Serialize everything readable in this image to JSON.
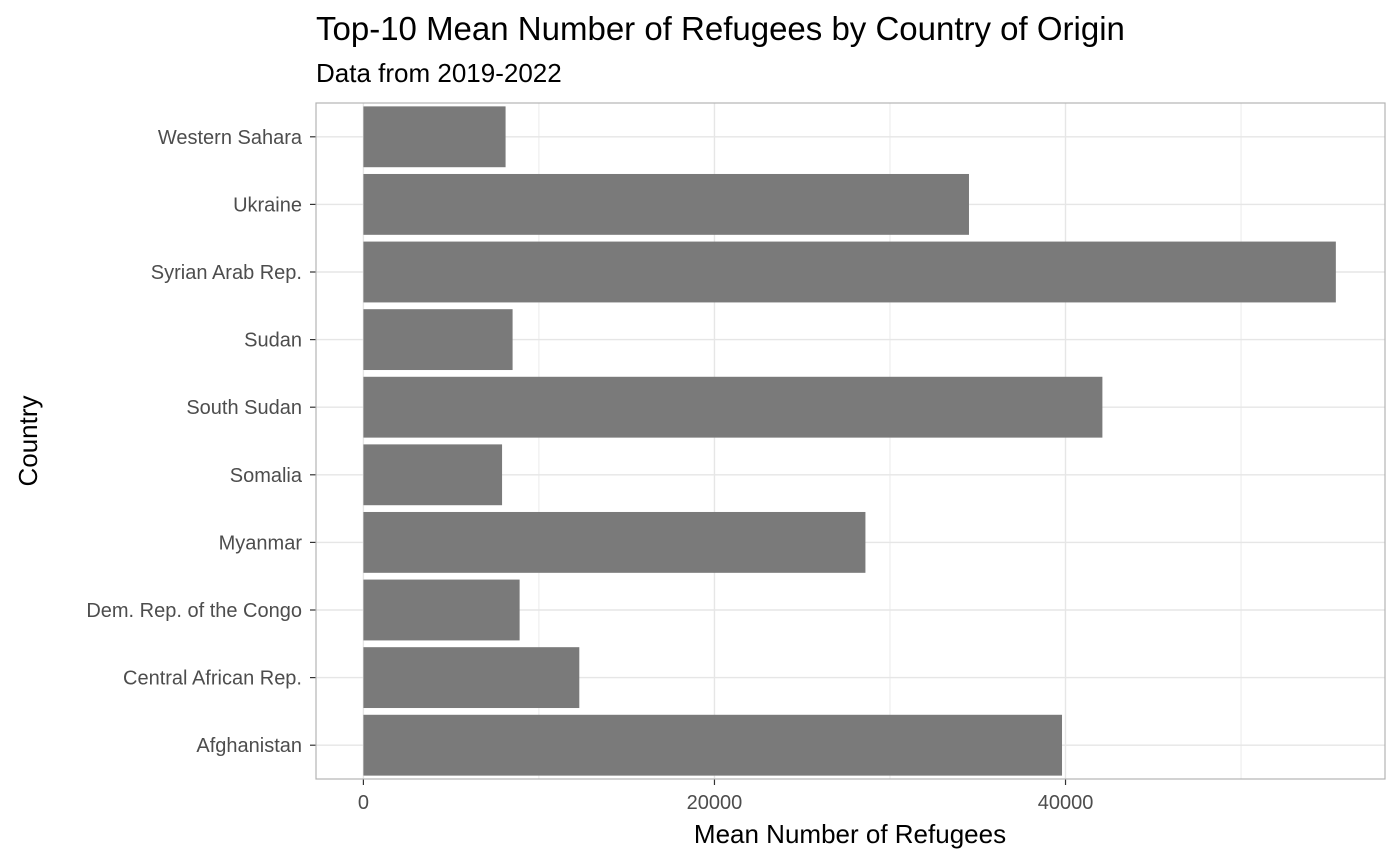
{
  "chart_data": {
    "type": "bar",
    "orientation": "horizontal",
    "title": "Top-10 Mean Number of Refugees by Country of Origin",
    "subtitle": "Data from 2019-2022",
    "xlabel": "Mean Number of Refugees",
    "ylabel": "Country",
    "categories": [
      "Afghanistan",
      "Central African Rep.",
      "Dem. Rep. of the Congo",
      "Myanmar",
      "Somalia",
      "South Sudan",
      "Sudan",
      "Syrian Arab Rep.",
      "Ukraine",
      "Western Sahara"
    ],
    "values": [
      39800,
      12300,
      8900,
      28600,
      7900,
      42100,
      8500,
      55400,
      34500,
      8100
    ],
    "xlim": [
      -2700,
      58200
    ],
    "xticks": [
      0,
      20000,
      40000
    ],
    "xtick_labels": [
      "0",
      "20000",
      "40000"
    ],
    "x_minor_gridlines": [
      10000,
      30000,
      50000
    ],
    "grid": true,
    "legend": "none",
    "bar_color": "#7a7a7a",
    "grid_color": "#e6e6e6",
    "panel_border_color": "#b3b3b3"
  }
}
